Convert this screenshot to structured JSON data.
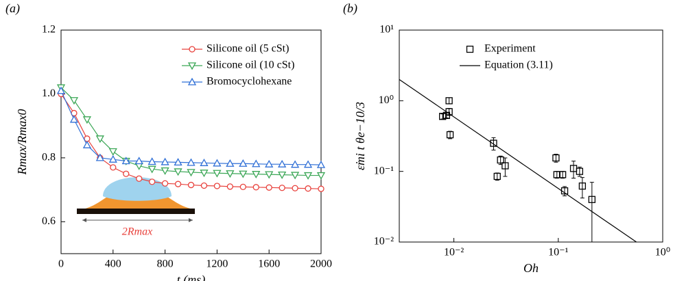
{
  "chart_data": [
    {
      "type": "line",
      "panel_label": "(a)",
      "x_label": "t (ms)",
      "y_label": "Rmax/Rmax0",
      "annotation": "2Rmax",
      "x": [
        0,
        100,
        200,
        300,
        400,
        500,
        600,
        700,
        800,
        900,
        1000,
        1100,
        1200,
        1300,
        1400,
        1500,
        1600,
        1700,
        1800,
        1900,
        2000
      ],
      "xlim": [
        0,
        2000
      ],
      "xticks": [
        0,
        400,
        800,
        1200,
        1600,
        2000
      ],
      "ylim": [
        0.5,
        1.2
      ],
      "yticks": [
        0.6,
        0.8,
        {
          "value": 1.0,
          "label": "1.0"
        },
        1.2
      ],
      "legend": "upper right",
      "series": [
        {
          "name": "Silicone oil (5 cSt)",
          "color": "#e8413c",
          "marker": "circle",
          "values": [
            1.0,
            0.94,
            0.86,
            0.8,
            0.77,
            0.75,
            0.735,
            0.725,
            0.72,
            0.718,
            0.715,
            0.713,
            0.712,
            0.71,
            0.709,
            0.708,
            0.707,
            0.706,
            0.705,
            0.704,
            0.703
          ]
        },
        {
          "name": "Silicone oil (10 cSt)",
          "color": "#3aa655",
          "marker": "triangle-down",
          "values": [
            1.02,
            0.98,
            0.92,
            0.86,
            0.82,
            0.79,
            0.775,
            0.765,
            0.76,
            0.757,
            0.755,
            0.753,
            0.752,
            0.751,
            0.75,
            0.749,
            0.748,
            0.747,
            0.746,
            0.745,
            0.745
          ]
        },
        {
          "name": "Bromocyclohexane",
          "color": "#2f6fd6",
          "marker": "triangle-up",
          "values": [
            1.01,
            0.92,
            0.84,
            0.8,
            0.795,
            0.79,
            0.79,
            0.788,
            0.787,
            0.786,
            0.785,
            0.784,
            0.783,
            0.782,
            0.782,
            0.781,
            0.78,
            0.78,
            0.779,
            0.779,
            0.778
          ]
        }
      ]
    },
    {
      "type": "scatter",
      "panel_label": "(b)",
      "x_label": "Oh",
      "y_label": "ε̇mi t θe−10/3",
      "log_x": true,
      "log_y": true,
      "xlim": [
        0.003,
        1
      ],
      "xticks": [
        {
          "value": 0.01,
          "label": "10⁻²"
        },
        {
          "value": 0.1,
          "label": "10⁻¹"
        },
        {
          "value": 1,
          "label": "10⁰"
        }
      ],
      "ylim": [
        0.01,
        10
      ],
      "yticks": [
        {
          "value": 0.01,
          "label": "10⁻²"
        },
        {
          "value": 0.1,
          "label": "10⁻¹"
        },
        {
          "value": 1,
          "label": "10⁰"
        },
        {
          "value": 10,
          "label": "10¹"
        }
      ],
      "legend": "upper right",
      "series": [
        {
          "name": "Experiment",
          "color": "#000000",
          "marker": "square",
          "x": [
            0.0078,
            0.0085,
            0.009,
            0.009,
            0.0092,
            0.024,
            0.026,
            0.028,
            0.031,
            0.095,
            0.097,
            0.11,
            0.115,
            0.14,
            0.16,
            0.17,
            0.21
          ],
          "values": [
            0.6,
            0.62,
            1.0,
            0.7,
            0.33,
            0.25,
            0.085,
            0.145,
            0.12,
            0.155,
            0.09,
            0.09,
            0.053,
            0.11,
            0.1,
            0.062,
            0.04
          ],
          "errors": [
            0.05,
            0.05,
            0.1,
            0.08,
            0.04,
            0.05,
            0.01,
            0.02,
            0.035,
            0.02,
            0.01,
            0.01,
            0.008,
            0.03,
            0.015,
            0.02,
            0.03
          ]
        },
        {
          "name": "Equation (3.11)",
          "color": "#000000",
          "marker": "none",
          "x": [
            0.003,
            0.56
          ],
          "values": [
            2,
            0.01
          ]
        }
      ]
    }
  ]
}
